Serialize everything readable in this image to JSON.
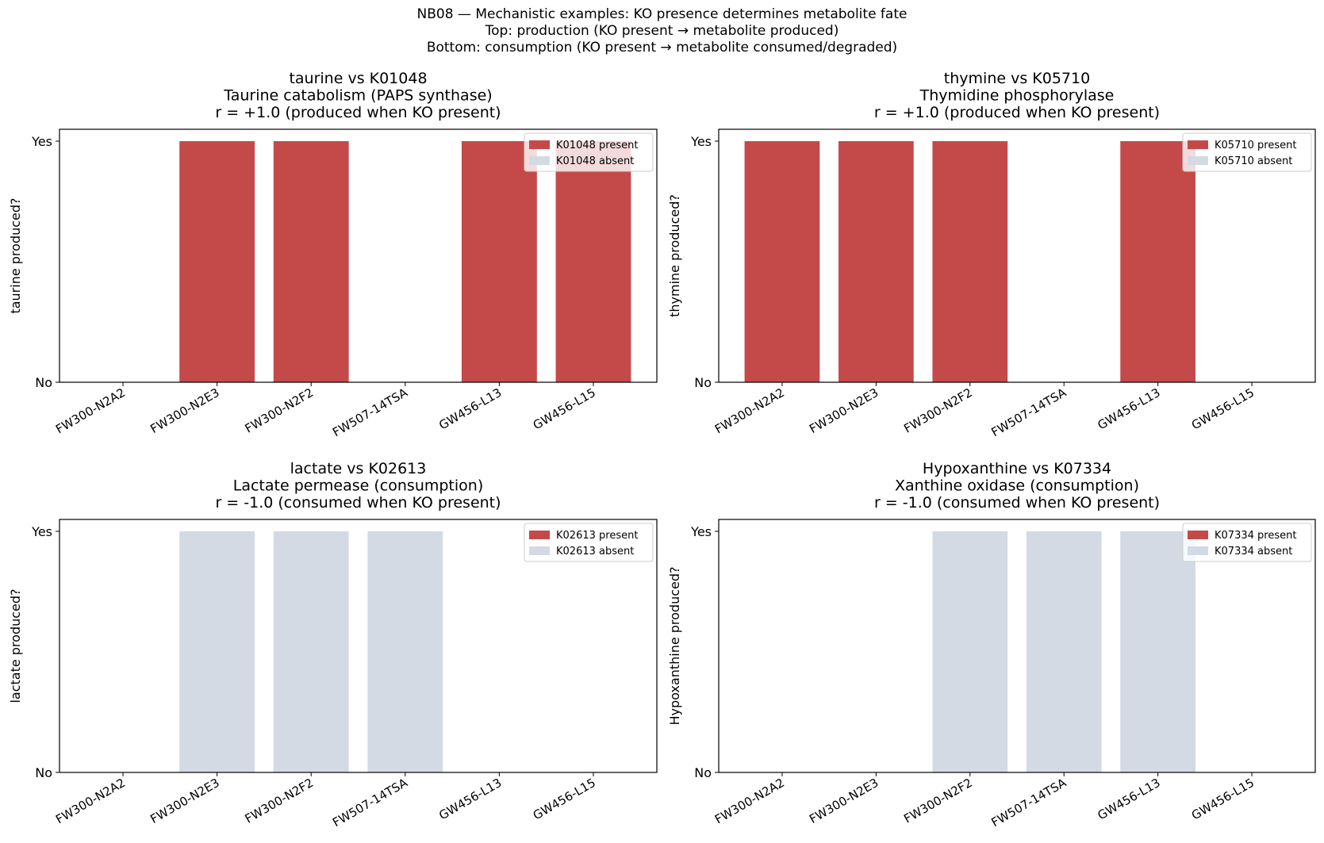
{
  "suptitle": [
    "NB08 — Mechanistic examples: KO presence determines metabolite fate",
    "Top: production (KO present → metabolite produced)",
    "Bottom: consumption (KO present → metabolite consumed/degraded)"
  ],
  "colors": {
    "present": "#c44a4a",
    "absent": "#d3dae3"
  },
  "chart_data": [
    {
      "type": "bar",
      "title": [
        "taurine vs K01048",
        "Taurine catabolism (PAPS synthase)",
        "r = +1.0 (produced when KO present)"
      ],
      "ylabel": "taurine produced?",
      "categories": [
        "FW300-N2A2",
        "FW300-N2E3",
        "FW300-N2F2",
        "FW507-14TSA",
        "GW456-L13",
        "GW456-L15"
      ],
      "values": [
        0,
        1,
        1,
        0,
        1,
        1
      ],
      "ko_present": [
        false,
        true,
        true,
        false,
        true,
        true
      ],
      "yticks": [
        "No",
        "Yes"
      ],
      "legend": [
        "K01048 present",
        "K01048 absent"
      ],
      "legend_loc": "upper right"
    },
    {
      "type": "bar",
      "title": [
        "thymine vs K05710",
        "Thymidine phosphorylase",
        "r = +1.0 (produced when KO present)"
      ],
      "ylabel": "thymine produced?",
      "categories": [
        "FW300-N2A2",
        "FW300-N2E3",
        "FW300-N2F2",
        "FW507-14TSA",
        "GW456-L13",
        "GW456-L15"
      ],
      "values": [
        1,
        1,
        1,
        0,
        1,
        0
      ],
      "ko_present": [
        true,
        true,
        true,
        false,
        true,
        false
      ],
      "yticks": [
        "No",
        "Yes"
      ],
      "legend": [
        "K05710 present",
        "K05710 absent"
      ],
      "legend_loc": "upper right"
    },
    {
      "type": "bar",
      "title": [
        "lactate vs K02613",
        "Lactate permease (consumption)",
        "r = -1.0 (consumed when KO present)"
      ],
      "ylabel": "lactate produced?",
      "categories": [
        "FW300-N2A2",
        "FW300-N2E3",
        "FW300-N2F2",
        "FW507-14TSA",
        "GW456-L13",
        "GW456-L15"
      ],
      "values": [
        0,
        1,
        1,
        1,
        0,
        0
      ],
      "ko_present": [
        true,
        false,
        false,
        false,
        true,
        true
      ],
      "yticks": [
        "No",
        "Yes"
      ],
      "legend": [
        "K02613 present",
        "K02613 absent"
      ],
      "legend_loc": "upper right"
    },
    {
      "type": "bar",
      "title": [
        "Hypoxanthine vs K07334",
        "Xanthine oxidase (consumption)",
        "r = -1.0 (consumed when KO present)"
      ],
      "ylabel": "Hypoxanthine produced?",
      "categories": [
        "FW300-N2A2",
        "FW300-N2E3",
        "FW300-N2F2",
        "FW507-14TSA",
        "GW456-L13",
        "GW456-L15"
      ],
      "values": [
        0,
        0,
        1,
        1,
        1,
        0
      ],
      "ko_present": [
        true,
        true,
        false,
        false,
        false,
        true
      ],
      "yticks": [
        "No",
        "Yes"
      ],
      "legend": [
        "K07334 present",
        "K07334 absent"
      ],
      "legend_loc": "upper right"
    }
  ]
}
